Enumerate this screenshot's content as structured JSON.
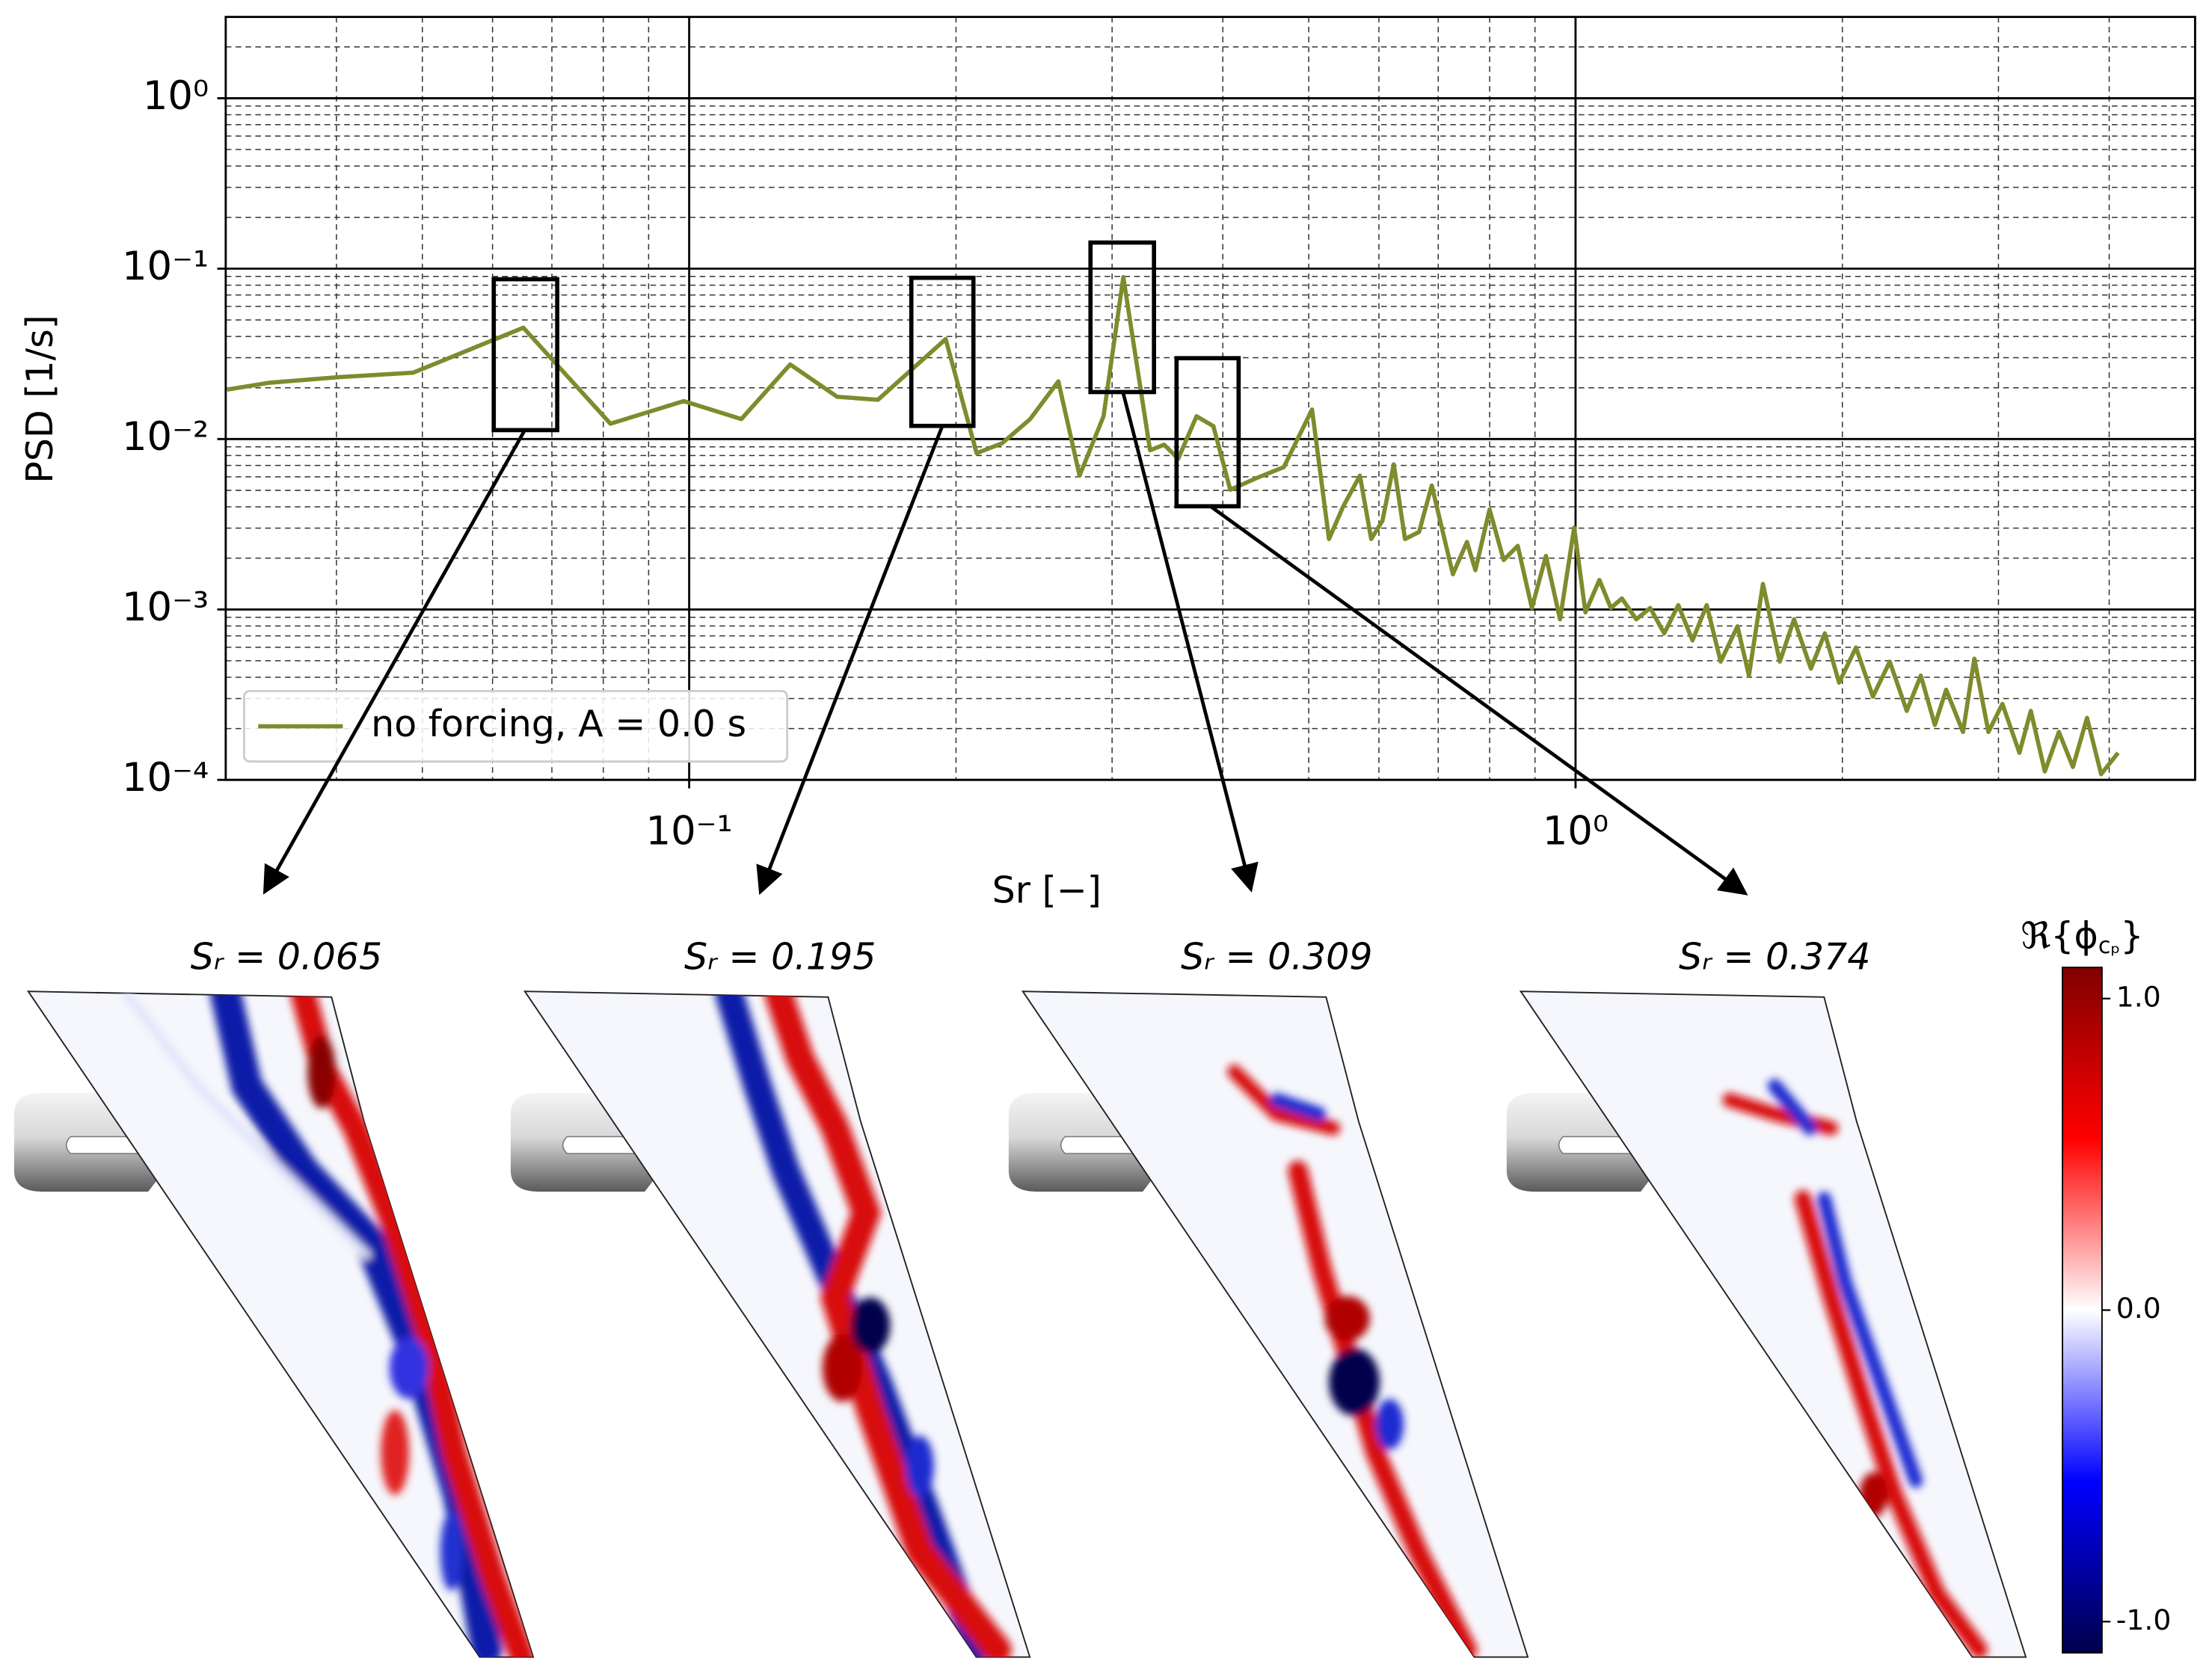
{
  "chart_data": {
    "type": "line",
    "x_label": "Sr [−]",
    "y_label": "PSD [1/s]",
    "x_scale": "log",
    "y_scale": "log",
    "xlim": [
      0.03,
      5
    ],
    "ylim": [
      0.0001,
      3
    ],
    "xticks": [
      {
        "value": 0.1,
        "label": "10⁻¹"
      },
      {
        "value": 1,
        "label": "10⁰"
      }
    ],
    "yticks": [
      {
        "value": 0.0001,
        "label": "10⁻⁴"
      },
      {
        "value": 0.001,
        "label": "10⁻³"
      },
      {
        "value": 0.01,
        "label": "10⁻²"
      },
      {
        "value": 0.1,
        "label": "10⁻¹"
      },
      {
        "value": 1,
        "label": "10⁰"
      }
    ],
    "grid": true,
    "minor_grid": true,
    "legend": "lower left",
    "x": [
      0.0301,
      0.0336,
      0.0403,
      0.0488,
      0.065,
      0.0815,
      0.0986,
      0.1145,
      0.13,
      0.1469,
      0.1633,
      0.1947,
      0.211,
      0.2254,
      0.2425,
      0.2609,
      0.2757,
      0.2934,
      0.3089,
      0.3311,
      0.3434,
      0.3562,
      0.3736,
      0.3903,
      0.4078,
      0.4356,
      0.4687,
      0.5043,
      0.527,
      0.5467,
      0.5711,
      0.5881,
      0.6056,
      0.6236,
      0.6421,
      0.666,
      0.6883,
      0.7271,
      0.7542,
      0.7709,
      0.7998,
      0.8296,
      0.8606,
      0.8927,
      0.926,
      0.9605,
      0.9964,
      1.026,
      1.064,
      1.096,
      1.128,
      1.171,
      1.214,
      1.259,
      1.306,
      1.355,
      1.406,
      1.458,
      1.523,
      1.569,
      1.627,
      1.7,
      1.764,
      1.843,
      1.911,
      1.983,
      2.072,
      2.165,
      2.262,
      2.364,
      2.452,
      2.543,
      2.619,
      2.736,
      2.818,
      2.923,
      3.031,
      3.168,
      3.263,
      3.384,
      3.51,
      3.64,
      3.776,
      3.917,
      4.093
    ],
    "series": [
      {
        "name": "no forcing, A = 0.0 s",
        "color": "#7f8b2c",
        "values": [
          0.0195,
          0.0214,
          0.0231,
          0.0245,
          0.045,
          0.0123,
          0.0167,
          0.0131,
          0.0274,
          0.0177,
          0.017,
          0.0386,
          0.00826,
          0.00944,
          0.0131,
          0.0218,
          0.0061,
          0.0136,
          0.0892,
          0.00859,
          0.00927,
          0.00766,
          0.0136,
          0.0119,
          0.00504,
          0.00587,
          0.00684,
          0.0149,
          0.00259,
          0.00401,
          0.0061,
          0.00259,
          0.00332,
          0.0071,
          0.00259,
          0.00285,
          0.00534,
          0.00161,
          0.00249,
          0.0017,
          0.00386,
          0.00195,
          0.00236,
          0.00102,
          0.00206,
          0.000875,
          0.00302,
          0.000962,
          0.00149,
          0.00102,
          0.00116,
          0.000875,
          0.00102,
          0.000724,
          0.00106,
          0.000658,
          0.00106,
          0.000494,
          0.000796,
          0.000409,
          0.00141,
          0.000494,
          0.000875,
          0.00045,
          0.000724,
          0.000372,
          0.000598,
          0.000308,
          0.000494,
          0.000254,
          0.000409,
          0.00021,
          0.000338,
          0.000191,
          0.000514,
          0.000191,
          0.000279,
          0.000144,
          0.000254,
          0.000112,
          0.000191,
          0.000119,
          0.000231,
          0.000108,
          0.000144
        ]
      }
    ]
  },
  "mode_panels": [
    {
      "label": "Sᵣ = 0.065"
    },
    {
      "label": "Sᵣ = 0.195"
    },
    {
      "label": "Sᵣ = 0.309"
    },
    {
      "label": "Sᵣ = 0.374"
    }
  ],
  "colorbar": {
    "label": "ℜ{ϕ",
    "label_subscript": "cₚ",
    "label_end": "}",
    "lim": [
      -1.1,
      1.1
    ],
    "ticks": [
      {
        "value": 1,
        "label": "1.0"
      },
      {
        "value": 0,
        "label": "0.0"
      },
      {
        "value": -1,
        "label": "-1.0"
      }
    ],
    "colormap": [
      "#00004c",
      "#0000ff",
      "#ffffff",
      "#ff0000",
      "#800000"
    ]
  }
}
